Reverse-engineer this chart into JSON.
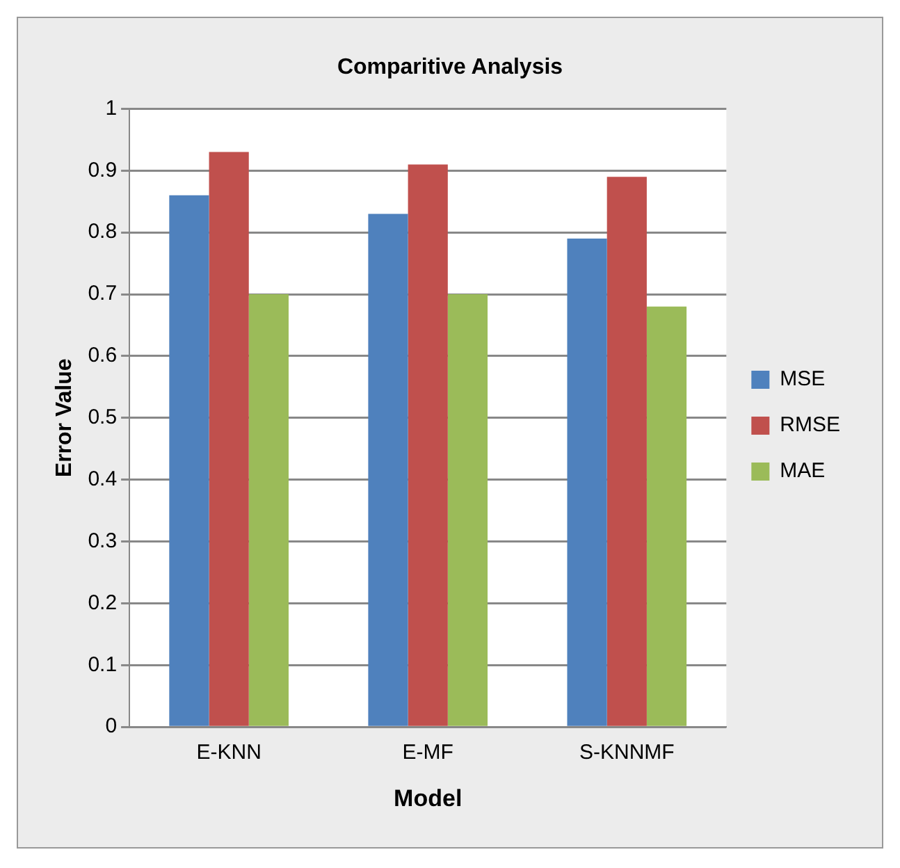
{
  "chart_data": {
    "type": "bar",
    "title": "Comparitive Analysis",
    "xlabel": "Model",
    "ylabel": "Error Value",
    "categories": [
      "E-KNN",
      "E-MF",
      "S-KNNMF"
    ],
    "series": [
      {
        "name": "MSE",
        "color": "#4f81bd",
        "values": [
          0.86,
          0.83,
          0.79
        ]
      },
      {
        "name": "RMSE",
        "color": "#c0504d",
        "values": [
          0.93,
          0.91,
          0.89
        ]
      },
      {
        "name": "MAE",
        "color": "#9bbb59",
        "values": [
          0.7,
          0.7,
          0.68
        ]
      }
    ],
    "ylim": [
      0,
      1
    ],
    "yticks": [
      0,
      0.1,
      0.2,
      0.3,
      0.4,
      0.5,
      0.6,
      0.7,
      0.8,
      0.9,
      1
    ],
    "grid": "y",
    "legend": "right"
  }
}
